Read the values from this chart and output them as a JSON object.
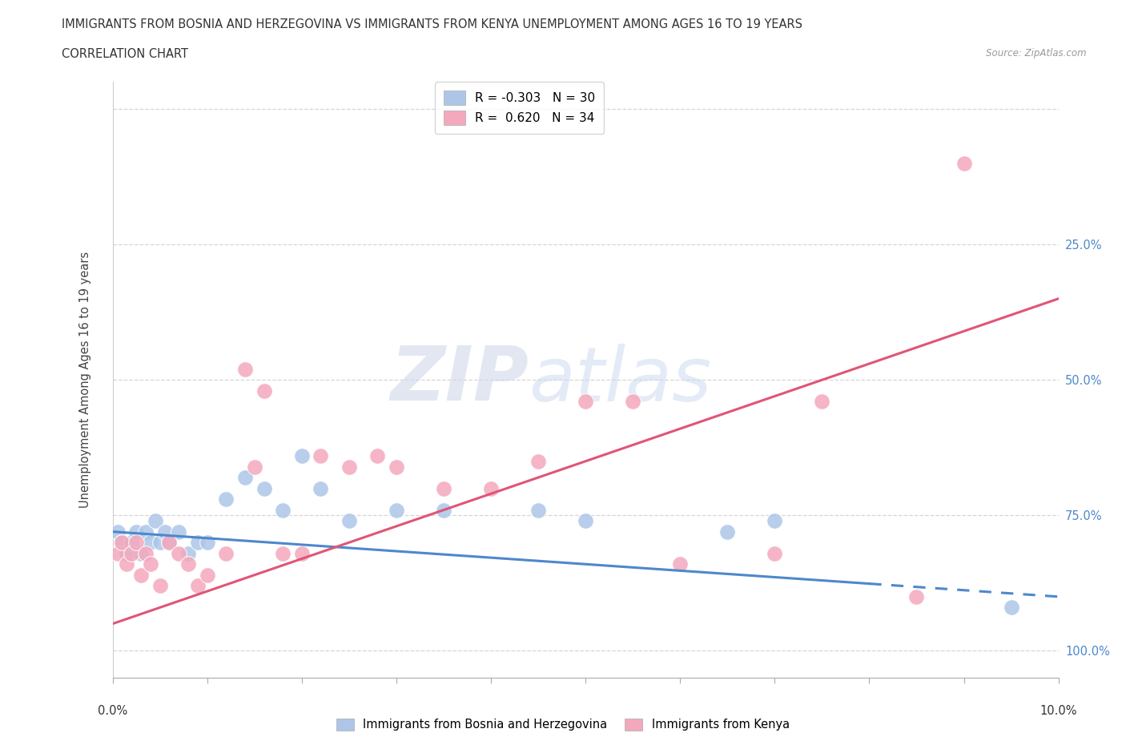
{
  "title_line1": "IMMIGRANTS FROM BOSNIA AND HERZEGOVINA VS IMMIGRANTS FROM KENYA UNEMPLOYMENT AMONG AGES 16 TO 19 YEARS",
  "title_line2": "CORRELATION CHART",
  "source": "Source: ZipAtlas.com",
  "ylabel": "Unemployment Among Ages 16 to 19 years",
  "watermark_zip": "ZIP",
  "watermark_atlas": "atlas",
  "legend_bosnia_R": "-0.303",
  "legend_bosnia_N": "30",
  "legend_kenya_R": "0.620",
  "legend_kenya_N": "34",
  "color_bosnia": "#adc6e8",
  "color_kenya": "#f4a8bc",
  "color_line_bosnia": "#4d88cc",
  "color_line_kenya": "#e05575",
  "bosnia_x": [
    0.05,
    0.1,
    0.15,
    0.2,
    0.25,
    0.3,
    0.35,
    0.4,
    0.45,
    0.5,
    0.55,
    0.6,
    0.7,
    0.8,
    0.9,
    1.0,
    1.2,
    1.4,
    1.6,
    1.8,
    2.0,
    2.2,
    2.5,
    3.0,
    3.5,
    4.5,
    5.0,
    6.5,
    7.0,
    9.5
  ],
  "bosnia_y": [
    22,
    20,
    18,
    20,
    22,
    18,
    22,
    20,
    24,
    20,
    22,
    20,
    22,
    18,
    20,
    20,
    28,
    32,
    30,
    26,
    36,
    30,
    24,
    26,
    26,
    26,
    24,
    22,
    24,
    8
  ],
  "kenya_x": [
    0.05,
    0.1,
    0.15,
    0.2,
    0.25,
    0.3,
    0.35,
    0.4,
    0.5,
    0.6,
    0.7,
    0.8,
    0.9,
    1.0,
    1.2,
    1.4,
    1.5,
    1.6,
    1.8,
    2.0,
    2.2,
    2.5,
    2.8,
    3.0,
    3.5,
    4.0,
    4.5,
    5.0,
    5.5,
    6.0,
    7.0,
    7.5,
    8.5,
    9.0
  ],
  "kenya_y": [
    18,
    20,
    16,
    18,
    20,
    14,
    18,
    16,
    12,
    20,
    18,
    16,
    12,
    14,
    18,
    52,
    34,
    48,
    18,
    18,
    36,
    34,
    36,
    34,
    30,
    30,
    35,
    46,
    46,
    16,
    18,
    46,
    10,
    90
  ],
  "bosnia_line": [
    22.0,
    10.0
  ],
  "kenya_line": [
    5.0,
    65.0
  ],
  "xlim": [
    0,
    10
  ],
  "ylim": [
    -5,
    105
  ],
  "yticks": [
    0,
    25,
    50,
    75,
    100
  ],
  "background_color": "#ffffff",
  "grid_color": "#cccccc"
}
